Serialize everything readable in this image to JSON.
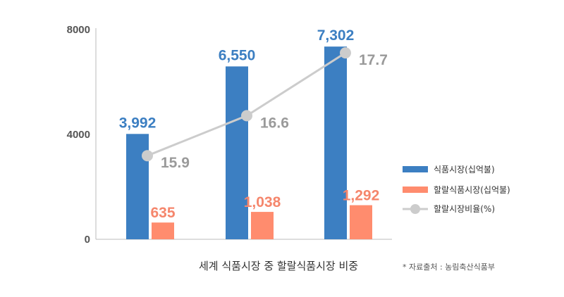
{
  "chart_data": {
    "type": "bar",
    "title": "세계 식품시장 중 할랄식품시장 비중",
    "source": "* 자료출처 : 농림축산식품부",
    "categories": [
      "",
      "",
      ""
    ],
    "ylim": [
      0,
      8000
    ],
    "yticks": [
      "0",
      "4000",
      "8000"
    ],
    "grid": false,
    "legend_position": "right",
    "series": [
      {
        "name": "식품시장(십억불)",
        "type": "bar",
        "color": "#3c7fc2",
        "values": [
          3992,
          6550,
          7302
        ],
        "labels": [
          "3,992",
          "6,550",
          "7,302"
        ]
      },
      {
        "name": "할랄식품시장(십억불)",
        "type": "bar",
        "color": "#ff8c6e",
        "values": [
          635,
          1038,
          1292
        ],
        "labels": [
          "635",
          "1,038",
          "1,292"
        ]
      },
      {
        "name": "할랄시장비율(%)",
        "type": "line",
        "color": "#cccccc",
        "values": [
          15.9,
          16.6,
          17.7
        ],
        "labels": [
          "15.9",
          "16.6",
          "17.7"
        ]
      }
    ]
  }
}
